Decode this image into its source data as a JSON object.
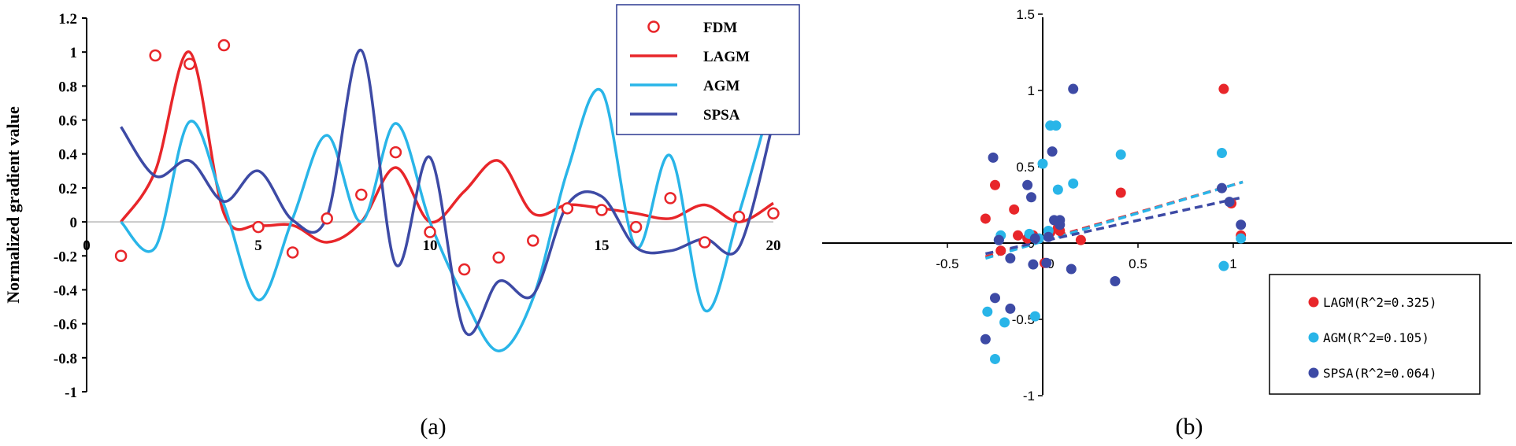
{
  "chart_data": [
    {
      "panel": "(a)",
      "type": "line",
      "ylabel": "Normalized gradient value",
      "xlabel": "",
      "xlim": [
        0,
        20
      ],
      "ylim": [
        -1,
        1.2
      ],
      "xticks": [
        "0",
        "5",
        "10",
        "15",
        "20"
      ],
      "yticks": [
        "1.2",
        "1",
        "0.8",
        "0.6",
        "0.4",
        "0.2",
        "0",
        "-0.2",
        "-0.4",
        "-0.6",
        "-0.8",
        "-1"
      ],
      "legend_position": "top-right",
      "series": [
        {
          "name": "FDM",
          "type": "scatter",
          "color": "#e8262a",
          "x": [
            1,
            2,
            3,
            4,
            5,
            6,
            7,
            8,
            9,
            10,
            11,
            12,
            13,
            14,
            15,
            16,
            17,
            18,
            19,
            20
          ],
          "values": [
            -0.2,
            0.98,
            0.93,
            1.04,
            -0.03,
            -0.18,
            0.02,
            0.16,
            0.41,
            -0.06,
            -0.28,
            -0.21,
            -0.11,
            0.08,
            0.07,
            -0.03,
            0.14,
            -0.12,
            0.03,
            0.05
          ]
        },
        {
          "name": "LAGM",
          "type": "line",
          "color": "#e8262a",
          "x": [
            1,
            2,
            3,
            4,
            5,
            6,
            7,
            8,
            9,
            10,
            11,
            12,
            13,
            14,
            15,
            16,
            17,
            18,
            19,
            20
          ],
          "values": [
            0,
            0.3,
            1.0,
            0.05,
            -0.02,
            -0.02,
            -0.12,
            0,
            0.32,
            0,
            0.18,
            0.36,
            0.05,
            0.1,
            0.08,
            0.05,
            0.02,
            0.1,
            0,
            0.11
          ]
        },
        {
          "name": "AGM",
          "type": "line",
          "color": "#29b5e8",
          "x": [
            1,
            2,
            3,
            4,
            5,
            6,
            7,
            8,
            9,
            10,
            11,
            12,
            13,
            14,
            15,
            16,
            17,
            18,
            19,
            20
          ],
          "values": [
            0,
            -0.15,
            0.59,
            0.1,
            -0.46,
            0.02,
            0.51,
            0,
            0.58,
            0,
            -0.45,
            -0.76,
            -0.45,
            0.3,
            0.77,
            -0.15,
            0.39,
            -0.52,
            0.05,
            0.76
          ]
        },
        {
          "name": "SPSA",
          "type": "line",
          "color": "#3d4aa5",
          "x": [
            1,
            2,
            3,
            4,
            5,
            6,
            7,
            8,
            9,
            10,
            11,
            12,
            13,
            14,
            15,
            16,
            17,
            18,
            19,
            20
          ],
          "values": [
            0.56,
            0.27,
            0.36,
            0.12,
            0.3,
            0.01,
            0.03,
            1.01,
            -0.25,
            0.38,
            -0.64,
            -0.35,
            -0.43,
            0.1,
            0.15,
            -0.15,
            -0.17,
            -0.1,
            -0.15,
            0.59
          ]
        }
      ]
    },
    {
      "panel": "(b)",
      "type": "scatter",
      "xlim": [
        -0.5,
        1.2
      ],
      "ylim": [
        -1,
        1.5
      ],
      "xticks": [
        "-0.5",
        "0",
        "0.5",
        "1"
      ],
      "yticks": [
        "1.5",
        "1",
        "0.5",
        "0",
        "-0.5",
        "-1"
      ],
      "legend_position": "bottom-right",
      "series": [
        {
          "name": "LAGM(R^2=0.325)",
          "color": "#e8262a",
          "points": [
            [
              -0.3,
              0.16
            ],
            [
              -0.25,
              0.38
            ],
            [
              -0.22,
              -0.05
            ],
            [
              -0.15,
              0.22
            ],
            [
              -0.13,
              0.05
            ],
            [
              -0.08,
              0.03
            ],
            [
              -0.05,
              0.05
            ],
            [
              0.01,
              -0.13
            ],
            [
              0.04,
              0.07
            ],
            [
              0.08,
              0.1
            ],
            [
              0.09,
              0.08
            ],
            [
              0.2,
              0.02
            ],
            [
              0.41,
              0.33
            ],
            [
              0.95,
              1.01
            ],
            [
              0.99,
              0.26
            ],
            [
              1.04,
              0.05
            ]
          ],
          "trend": [
            [
              -0.3,
              -0.09
            ],
            [
              1.05,
              0.4
            ]
          ]
        },
        {
          "name": "AGM(R^2=0.105)",
          "color": "#29b5e8",
          "points": [
            [
              -0.29,
              -0.45
            ],
            [
              -0.25,
              -0.76
            ],
            [
              -0.23,
              0.02
            ],
            [
              -0.22,
              0.05
            ],
            [
              -0.2,
              -0.52
            ],
            [
              -0.07,
              0.06
            ],
            [
              -0.04,
              -0.48
            ],
            [
              -0.02,
              0.03
            ],
            [
              0.0,
              0.52
            ],
            [
              0.03,
              0.08
            ],
            [
              0.04,
              0.77
            ],
            [
              0.07,
              0.77
            ],
            [
              0.08,
              0.35
            ],
            [
              0.16,
              0.39
            ],
            [
              0.41,
              0.58
            ],
            [
              0.94,
              0.59
            ],
            [
              0.95,
              -0.15
            ],
            [
              1.04,
              0.03
            ]
          ],
          "trend": [
            [
              -0.3,
              -0.1
            ],
            [
              1.05,
              0.4
            ]
          ]
        },
        {
          "name": "SPSA(R^2=0.064)",
          "color": "#3d4aa5",
          "points": [
            [
              -0.3,
              -0.63
            ],
            [
              -0.26,
              0.56
            ],
            [
              -0.25,
              -0.36
            ],
            [
              -0.23,
              0.02
            ],
            [
              -0.17,
              -0.1
            ],
            [
              -0.17,
              -0.43
            ],
            [
              -0.08,
              0.38
            ],
            [
              -0.06,
              0.3
            ],
            [
              -0.05,
              -0.14
            ],
            [
              -0.04,
              0.03
            ],
            [
              0.02,
              -0.13
            ],
            [
              0.03,
              0.04
            ],
            [
              0.05,
              0.6
            ],
            [
              0.06,
              0.15
            ],
            [
              0.09,
              0.15
            ],
            [
              0.09,
              0.12
            ],
            [
              0.15,
              -0.17
            ],
            [
              0.16,
              1.01
            ],
            [
              0.38,
              -0.25
            ],
            [
              0.94,
              0.36
            ],
            [
              0.98,
              0.27
            ],
            [
              1.04,
              0.12
            ]
          ],
          "trend": [
            [
              -0.3,
              -0.07
            ],
            [
              1.05,
              0.3
            ]
          ]
        }
      ]
    }
  ],
  "captions": {
    "a": "(a)",
    "b": "(b)"
  },
  "colors": {
    "red": "#e8262a",
    "cyan": "#29b5e8",
    "navy": "#3d4aa5",
    "zero_line": "#c8c8c8"
  }
}
